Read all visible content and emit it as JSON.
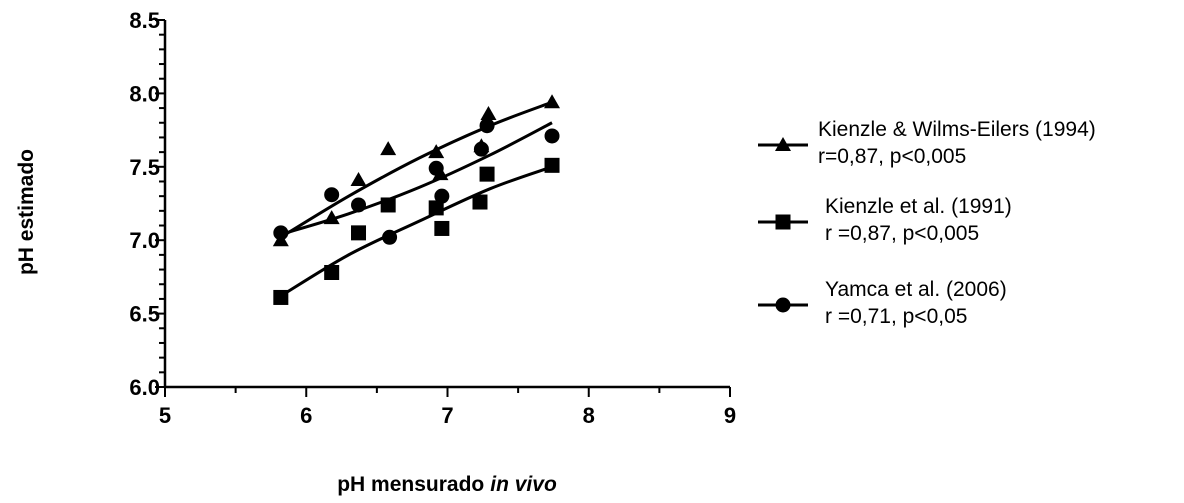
{
  "chart_data": {
    "type": "scatter",
    "title": "",
    "xlabel": "pH mensurado",
    "xlabel_italic": "in vivo",
    "ylabel": "pH estimado",
    "xlim": [
      5,
      9
    ],
    "ylim": [
      6.0,
      8.5
    ],
    "xticks": [
      "5",
      "6",
      "7",
      "8",
      "9"
    ],
    "yticks": [
      "6.0",
      "6.5",
      "7.0",
      "7.5",
      "8.0",
      "8.5"
    ],
    "grid": false,
    "legend_position": "right",
    "series": [
      {
        "name": "Kienzle & Wilms-Eilers (1994)",
        "stat": "r=0,87, p<0,005",
        "marker": "triangle",
        "points": [
          [
            5.82,
            7.0
          ],
          [
            6.18,
            7.15
          ],
          [
            6.37,
            7.41
          ],
          [
            6.58,
            7.62
          ],
          [
            6.92,
            7.6
          ],
          [
            6.95,
            7.45
          ],
          [
            7.24,
            7.64
          ],
          [
            7.29,
            7.86
          ],
          [
            7.74,
            7.94
          ]
        ],
        "fit": [
          [
            5.82,
            7.02
          ],
          [
            6.3,
            7.3
          ],
          [
            6.8,
            7.56
          ],
          [
            7.3,
            7.78
          ],
          [
            7.74,
            7.94
          ]
        ]
      },
      {
        "name": "Kienzle et al. (1991)",
        "stat": "r =0,87, p<0,005",
        "marker": "square",
        "points": [
          [
            5.82,
            6.61
          ],
          [
            6.18,
            6.78
          ],
          [
            6.37,
            7.05
          ],
          [
            6.58,
            7.24
          ],
          [
            6.92,
            7.22
          ],
          [
            6.96,
            7.08
          ],
          [
            7.23,
            7.26
          ],
          [
            7.28,
            7.45
          ],
          [
            7.74,
            7.51
          ]
        ],
        "fit": [
          [
            5.82,
            6.62
          ],
          [
            6.3,
            6.9
          ],
          [
            6.8,
            7.13
          ],
          [
            7.3,
            7.35
          ],
          [
            7.74,
            7.5
          ]
        ]
      },
      {
        "name": "Yamca et al. (2006)",
        "stat": "r =0,71, p<0,05",
        "marker": "circle",
        "points": [
          [
            5.82,
            7.05
          ],
          [
            6.18,
            7.31
          ],
          [
            6.37,
            7.24
          ],
          [
            6.59,
            7.02
          ],
          [
            6.92,
            7.49
          ],
          [
            6.96,
            7.3
          ],
          [
            7.24,
            7.62
          ],
          [
            7.28,
            7.78
          ],
          [
            7.74,
            7.71
          ]
        ],
        "fit": [
          [
            5.82,
            7.04
          ],
          [
            6.3,
            7.18
          ],
          [
            6.8,
            7.36
          ],
          [
            7.3,
            7.58
          ],
          [
            7.74,
            7.8
          ]
        ]
      }
    ]
  }
}
